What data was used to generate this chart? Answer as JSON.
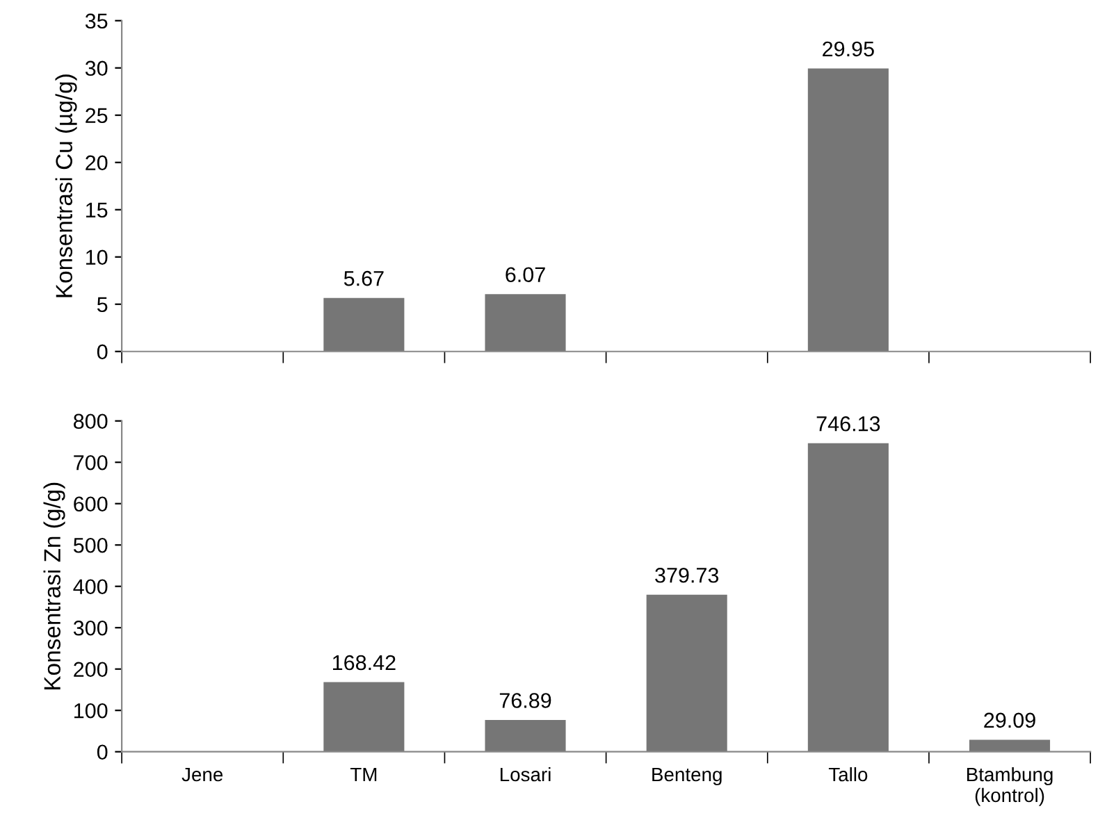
{
  "chart_data": [
    {
      "type": "bar",
      "ylabel": "Konsentrasi Cu (µg/g)",
      "categories": [
        null,
        null,
        null,
        null,
        null,
        null
      ],
      "values": [
        null,
        5.67,
        6.07,
        null,
        29.95,
        null
      ],
      "color": "#767676",
      "ylim": [
        0,
        35
      ],
      "yticks": [
        0,
        5,
        10,
        15,
        20,
        25,
        30,
        35
      ],
      "data_labels": true,
      "tick_labels": "y",
      "grid": false,
      "legend": false
    },
    {
      "type": "bar",
      "ylabel": "Konsentrasi Zn (g/g)",
      "categories": [
        "Jene",
        "TM",
        "Losari",
        "Benteng",
        "Tallo",
        "Btambung\n(kontrol)"
      ],
      "values": [
        null,
        168.42,
        76.89,
        379.73,
        746.13,
        29.09
      ],
      "color": "#767676",
      "ylim": [
        0,
        800
      ],
      "yticks": [
        0,
        100,
        200,
        300,
        400,
        500,
        600,
        700,
        800
      ],
      "data_labels": true,
      "grid": false,
      "legend": false
    }
  ]
}
